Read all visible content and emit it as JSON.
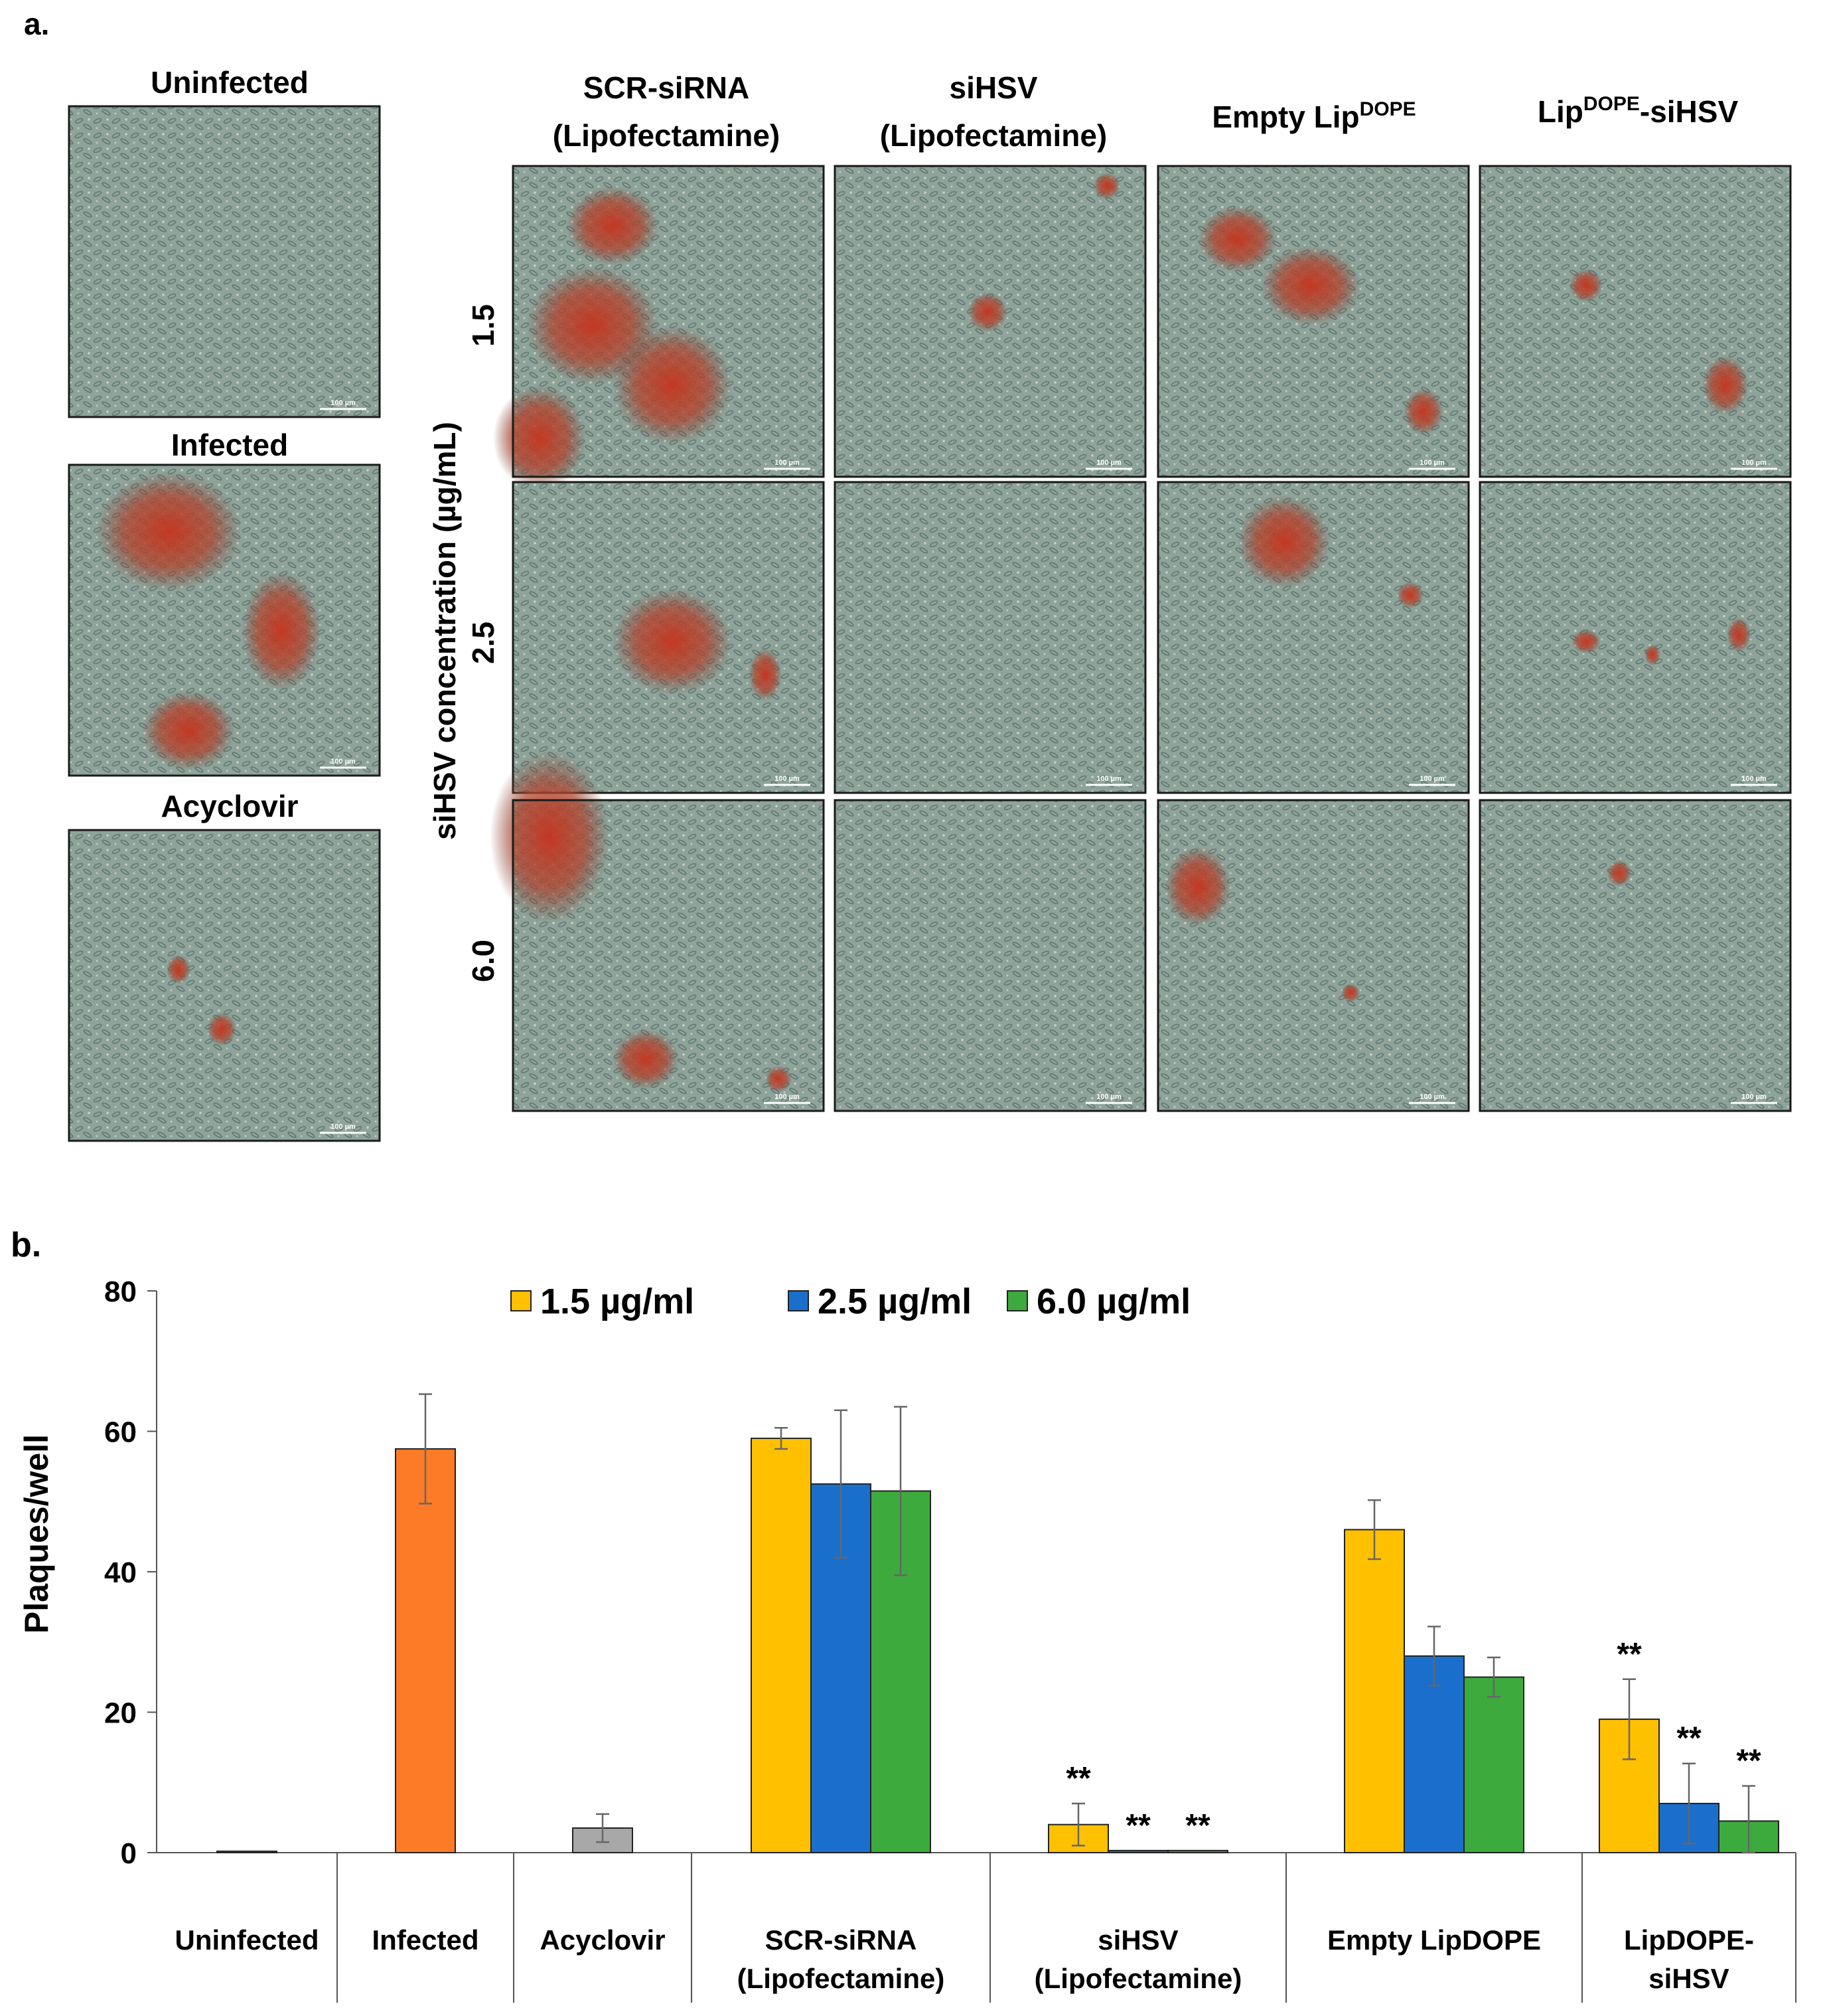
{
  "panel_a": {
    "label": "a.",
    "y_axis_label": "siHSV concentration (µg/mL)",
    "left_controls": [
      "Uninfected",
      "Infected",
      "Acyclovir"
    ],
    "column_headers": [
      {
        "line1": "SCR-siRNA",
        "line2": "(Lipofectamine)"
      },
      {
        "line1": "siHSV",
        "line2": "(Lipofectamine)"
      },
      {
        "main": "Empty Lip",
        "sup": "DOPE",
        "after": ""
      },
      {
        "main": "Lip",
        "sup": "DOPE",
        "after": "-siHSV"
      }
    ],
    "row_labels": [
      "1.5",
      "2.5",
      "6.0"
    ],
    "scale_bar_text": "100 µm",
    "colors": {
      "well_background": "#8ea39a",
      "cell_texture": "#3f5953",
      "plaque_red": "#c8321c",
      "plaque_dark": "#7a3a30"
    }
  },
  "panel_b": {
    "label": "b."
  },
  "chart_data": {
    "type": "bar",
    "ylabel": "Plaques/well",
    "xlabel": "",
    "ylim": [
      0,
      80
    ],
    "yticks": [
      0,
      20,
      40,
      60,
      80
    ],
    "grid": false,
    "legend_position": "top",
    "legend": [
      {
        "label": "1.5 µg/ml",
        "color": "#ffc000"
      },
      {
        "label": "2.5 µg/ml",
        "color": "#1a6fcd"
      },
      {
        "label": "6.0 µg/ml",
        "color": "#3daa3d"
      }
    ],
    "groups": [
      {
        "label": [
          "Uninfected"
        ],
        "bars": [
          {
            "value": 0.2,
            "error": 0,
            "color": "#aaaaaa",
            "sig": ""
          }
        ]
      },
      {
        "label": [
          "Infected"
        ],
        "bars": [
          {
            "value": 57.5,
            "error": 7.8,
            "color": "#fd7b27",
            "sig": ""
          }
        ]
      },
      {
        "label": [
          "Acyclovir"
        ],
        "bars": [
          {
            "value": 3.5,
            "error": 2.0,
            "color": "#a8a8a8",
            "sig": ""
          }
        ]
      },
      {
        "label": [
          "SCR-siRNA",
          "(Lipofectamine)"
        ],
        "bars": [
          {
            "value": 59,
            "error": 1.5,
            "color": "#ffc000",
            "sig": ""
          },
          {
            "value": 52.5,
            "error": 10.5,
            "color": "#1a6fcd",
            "sig": ""
          },
          {
            "value": 51.5,
            "error": 12,
            "color": "#3daa3d",
            "sig": ""
          }
        ]
      },
      {
        "label": [
          "siHSV",
          "(Lipofectamine)"
        ],
        "bars": [
          {
            "value": 4,
            "error": 3,
            "color": "#ffc000",
            "sig": "**"
          },
          {
            "value": 0.3,
            "error": 0,
            "color": "#1a6fcd",
            "sig": "**"
          },
          {
            "value": 0.3,
            "error": 0,
            "color": "#3daa3d",
            "sig": "**"
          }
        ]
      },
      {
        "label": [
          "Empty LipDOPE"
        ],
        "bars": [
          {
            "value": 46,
            "error": 4.2,
            "color": "#ffc000",
            "sig": ""
          },
          {
            "value": 28,
            "error": 4.2,
            "color": "#1a6fcd",
            "sig": ""
          },
          {
            "value": 25,
            "error": 2.8,
            "color": "#3daa3d",
            "sig": ""
          }
        ]
      },
      {
        "label": [
          "LipDOPE-",
          "siHSV"
        ],
        "bars": [
          {
            "value": 19,
            "error": 5.7,
            "color": "#ffc000",
            "sig": "**"
          },
          {
            "value": 7,
            "error": 5.7,
            "color": "#1a6fcd",
            "sig": "**"
          },
          {
            "value": 4.5,
            "error": 5.0,
            "color": "#3daa3d",
            "sig": "**"
          }
        ]
      }
    ]
  }
}
